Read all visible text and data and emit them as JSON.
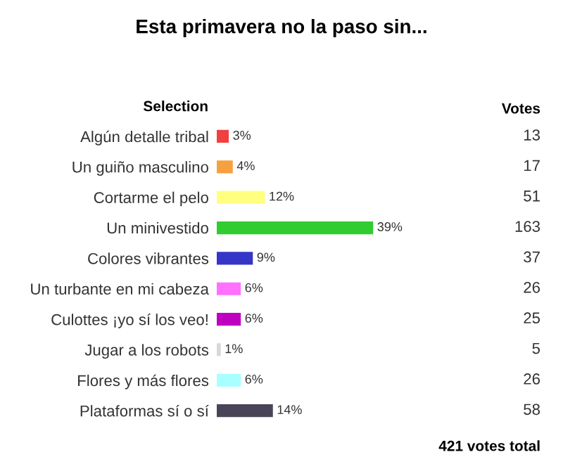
{
  "chart_data": {
    "type": "bar",
    "orientation": "horizontal",
    "title": "Esta primavera no la paso sin...",
    "ylabel": "Selection",
    "categories": [
      "Algún detalle tribal",
      "Un guiño masculino",
      "Cortarme el pelo",
      "Un minivestido",
      "Colores vibrantes",
      "Un turbante en mi cabeza",
      "Culottes ¡yo sí los veo!",
      "Jugar a los robots",
      "Flores y más flores",
      "Plataformas sí o sí"
    ],
    "values": [
      3,
      4,
      12,
      39,
      9,
      6,
      6,
      1,
      6,
      14
    ],
    "value_labels": [
      "3%",
      "4%",
      "12%",
      "39%",
      "9%",
      "6%",
      "6%",
      "1%",
      "6%",
      "14%"
    ],
    "colors": [
      "#f04040",
      "#f7a040",
      "#ffff80",
      "#30cc30",
      "#3535c8",
      "#ff70ff",
      "#c000c0",
      "#d8d8d8",
      "#a8ffff",
      "#4a4458"
    ],
    "annotations": [
      "Votes",
      "13",
      "17",
      "51",
      "163",
      "37",
      "26",
      "25",
      "5",
      "26",
      "58",
      "421 votes total"
    ]
  }
}
